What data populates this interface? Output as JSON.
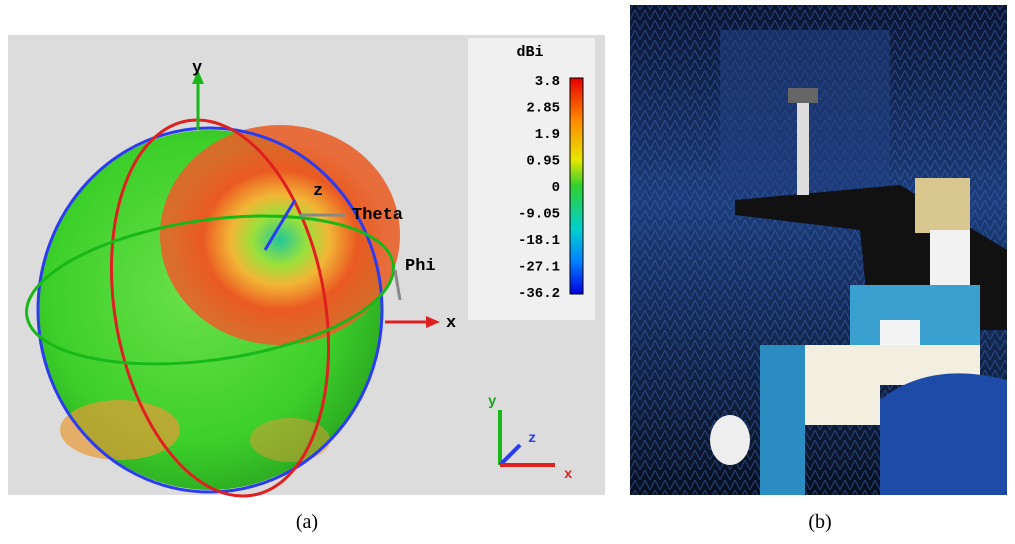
{
  "panel_a": {
    "axes": {
      "y": "y",
      "z": "z",
      "theta": "Theta",
      "phi": "Phi",
      "x": "x"
    },
    "colorbar": {
      "title": "dBi",
      "ticks": [
        "3.8",
        "2.85",
        "1.9",
        "0.95",
        "0",
        "-9.05",
        "-18.1",
        "-27.1",
        "-36.2"
      ]
    },
    "mini_axes": {
      "y": "y",
      "z": "z",
      "x": "x"
    },
    "caption": "(a)"
  },
  "panel_b": {
    "caption": "(b)"
  }
}
